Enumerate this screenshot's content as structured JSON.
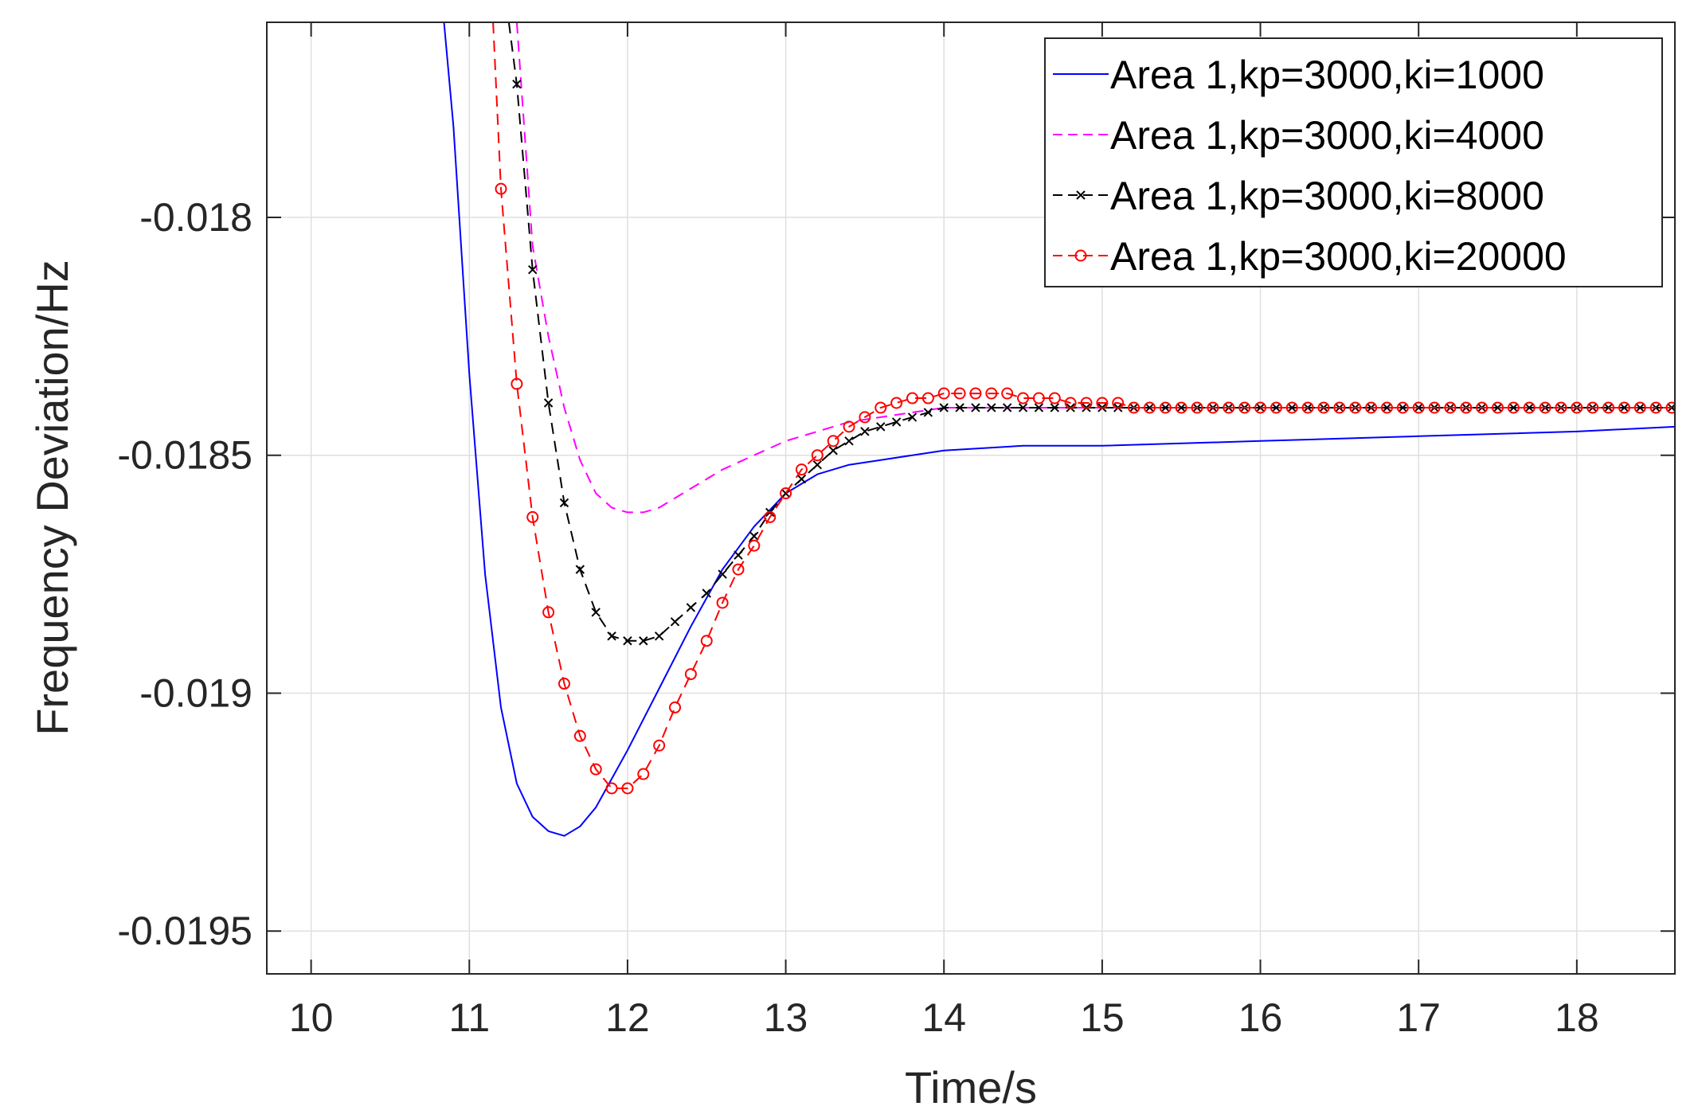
{
  "chart_data": {
    "type": "line",
    "title": "",
    "xlabel": "Time/s",
    "ylabel": "Frequency Deviation/Hz",
    "xlim": [
      9.72,
      18.62
    ],
    "ylim": [
      -0.01959,
      -0.01759
    ],
    "xticks": [
      10,
      11,
      12,
      13,
      14,
      15,
      16,
      17,
      18
    ],
    "xtick_labels": [
      "10",
      "11",
      "12",
      "13",
      "14",
      "15",
      "16",
      "17",
      "18"
    ],
    "yticks": [
      -0.018,
      -0.0185,
      -0.019,
      -0.0195
    ],
    "ytick_labels": [
      "-0.018",
      "-0.0185",
      "-0.019",
      "-0.0195"
    ],
    "grid": true,
    "legend_position": "top-right",
    "series": [
      {
        "name": "Area 1,kp=3000,ki=1000",
        "color": "#0000FF",
        "dash": "solid",
        "marker": "none",
        "x": [
          10.84,
          10.9,
          11.0,
          11.1,
          11.2,
          11.3,
          11.4,
          11.5,
          11.6,
          11.7,
          11.8,
          11.9,
          12.0,
          12.2,
          12.4,
          12.6,
          12.8,
          13.0,
          13.2,
          13.4,
          13.6,
          13.8,
          14.0,
          14.5,
          15.0,
          16.0,
          17.0,
          18.0,
          18.62
        ],
        "y": [
          -0.01759,
          -0.01781,
          -0.01833,
          -0.01875,
          -0.01903,
          -0.01919,
          -0.01926,
          -0.01929,
          -0.0193,
          -0.01928,
          -0.01924,
          -0.01918,
          -0.01912,
          -0.01899,
          -0.01886,
          -0.01874,
          -0.01865,
          -0.01858,
          -0.01854,
          -0.01852,
          -0.01851,
          -0.0185,
          -0.01849,
          -0.01848,
          -0.01848,
          -0.01847,
          -0.01846,
          -0.01845,
          -0.01844
        ]
      },
      {
        "name": "Area 1,kp=3000,ki=4000",
        "color": "#FF00FF",
        "dash": "dashed",
        "marker": "none",
        "x": [
          11.3,
          11.4,
          11.5,
          11.6,
          11.7,
          11.8,
          11.9,
          12.0,
          12.1,
          12.2,
          12.3,
          12.4,
          12.6,
          12.8,
          13.0,
          13.2,
          13.4,
          13.6,
          13.8,
          14.0,
          14.3,
          14.6,
          15.0,
          15.5,
          16.0,
          17.0,
          18.0,
          18.62
        ],
        "y": [
          -0.01759,
          -0.01806,
          -0.01825,
          -0.0184,
          -0.01851,
          -0.01858,
          -0.01861,
          -0.01862,
          -0.01862,
          -0.01861,
          -0.01859,
          -0.01857,
          -0.01853,
          -0.0185,
          -0.01847,
          -0.01845,
          -0.01843,
          -0.01842,
          -0.01841,
          -0.0184,
          -0.0184,
          -0.0184,
          -0.0184,
          -0.0184,
          -0.0184,
          -0.0184,
          -0.0184,
          -0.0184
        ]
      },
      {
        "name": "Area 1,kp=3000,ki=8000",
        "color": "#000000",
        "dash": "dashed",
        "marker": "x",
        "x": [
          11.25,
          11.3,
          11.4,
          11.5,
          11.6,
          11.7,
          11.8,
          11.9,
          12.0,
          12.1,
          12.2,
          12.3,
          12.4,
          12.5,
          12.6,
          12.7,
          12.8,
          12.9,
          13.0,
          13.1,
          13.2,
          13.3,
          13.4,
          13.5,
          13.6,
          13.7,
          13.8,
          13.9,
          14.0,
          14.1,
          14.2,
          14.3,
          14.4,
          14.5,
          14.6,
          14.7,
          14.8,
          14.9,
          15.0,
          15.1,
          15.2,
          15.3,
          15.4,
          15.5,
          15.6,
          15.7,
          15.8,
          15.9,
          16.0,
          16.1,
          16.2,
          16.3,
          16.4,
          16.5,
          16.6,
          16.7,
          16.8,
          16.9,
          17.0,
          17.1,
          17.2,
          17.3,
          17.4,
          17.5,
          17.6,
          17.7,
          17.8,
          17.9,
          18.0,
          18.1,
          18.2,
          18.3,
          18.4,
          18.5,
          18.6
        ],
        "y": [
          -0.01759,
          -0.01772,
          -0.01811,
          -0.01839,
          -0.0186,
          -0.01874,
          -0.01883,
          -0.01888,
          -0.01889,
          -0.01889,
          -0.01888,
          -0.01885,
          -0.01882,
          -0.01879,
          -0.01875,
          -0.01871,
          -0.01867,
          -0.01862,
          -0.01858,
          -0.01855,
          -0.01852,
          -0.01849,
          -0.01847,
          -0.01845,
          -0.01844,
          -0.01843,
          -0.01842,
          -0.01841,
          -0.0184,
          -0.0184,
          -0.0184,
          -0.0184,
          -0.0184,
          -0.0184,
          -0.0184,
          -0.0184,
          -0.0184,
          -0.0184,
          -0.0184,
          -0.0184,
          -0.0184,
          -0.0184,
          -0.0184,
          -0.0184,
          -0.0184,
          -0.0184,
          -0.0184,
          -0.0184,
          -0.0184,
          -0.0184,
          -0.0184,
          -0.0184,
          -0.0184,
          -0.0184,
          -0.0184,
          -0.0184,
          -0.0184,
          -0.0184,
          -0.0184,
          -0.0184,
          -0.0184,
          -0.0184,
          -0.0184,
          -0.0184,
          -0.0184,
          -0.0184,
          -0.0184,
          -0.0184,
          -0.0184,
          -0.0184,
          -0.0184,
          -0.0184,
          -0.0184,
          -0.0184,
          -0.0184
        ]
      },
      {
        "name": "Area 1,kp=3000,ki=20000",
        "color": "#FF0000",
        "dash": "dashed",
        "marker": "o",
        "x": [
          11.15,
          11.2,
          11.3,
          11.4,
          11.5,
          11.6,
          11.7,
          11.8,
          11.9,
          12.0,
          12.1,
          12.2,
          12.3,
          12.4,
          12.5,
          12.6,
          12.7,
          12.8,
          12.9,
          13.0,
          13.1,
          13.2,
          13.3,
          13.4,
          13.5,
          13.6,
          13.7,
          13.8,
          13.9,
          14.0,
          14.1,
          14.2,
          14.3,
          14.4,
          14.5,
          14.6,
          14.7,
          14.8,
          14.9,
          15.0,
          15.1,
          15.2,
          15.3,
          15.4,
          15.5,
          15.6,
          15.7,
          15.8,
          15.9,
          16.0,
          16.1,
          16.2,
          16.3,
          16.4,
          16.5,
          16.6,
          16.7,
          16.8,
          16.9,
          17.0,
          17.1,
          17.2,
          17.3,
          17.4,
          17.5,
          17.6,
          17.7,
          17.8,
          17.9,
          18.0,
          18.1,
          18.2,
          18.3,
          18.4,
          18.5,
          18.6
        ],
        "y": [
          -0.01759,
          -0.01794,
          -0.01835,
          -0.01863,
          -0.01883,
          -0.01898,
          -0.01909,
          -0.01916,
          -0.0192,
          -0.0192,
          -0.01917,
          -0.01911,
          -0.01903,
          -0.01896,
          -0.01889,
          -0.01881,
          -0.01874,
          -0.01869,
          -0.01863,
          -0.01858,
          -0.01853,
          -0.0185,
          -0.01847,
          -0.01844,
          -0.01842,
          -0.0184,
          -0.01839,
          -0.01838,
          -0.01838,
          -0.01837,
          -0.01837,
          -0.01837,
          -0.01837,
          -0.01837,
          -0.01838,
          -0.01838,
          -0.01838,
          -0.01839,
          -0.01839,
          -0.01839,
          -0.01839,
          -0.0184,
          -0.0184,
          -0.0184,
          -0.0184,
          -0.0184,
          -0.0184,
          -0.0184,
          -0.0184,
          -0.0184,
          -0.0184,
          -0.0184,
          -0.0184,
          -0.0184,
          -0.0184,
          -0.0184,
          -0.0184,
          -0.0184,
          -0.0184,
          -0.0184,
          -0.0184,
          -0.0184,
          -0.0184,
          -0.0184,
          -0.0184,
          -0.0184,
          -0.0184,
          -0.0184,
          -0.0184,
          -0.0184,
          -0.0184,
          -0.0184,
          -0.0184,
          -0.0184,
          -0.0184,
          -0.0184
        ]
      }
    ]
  }
}
